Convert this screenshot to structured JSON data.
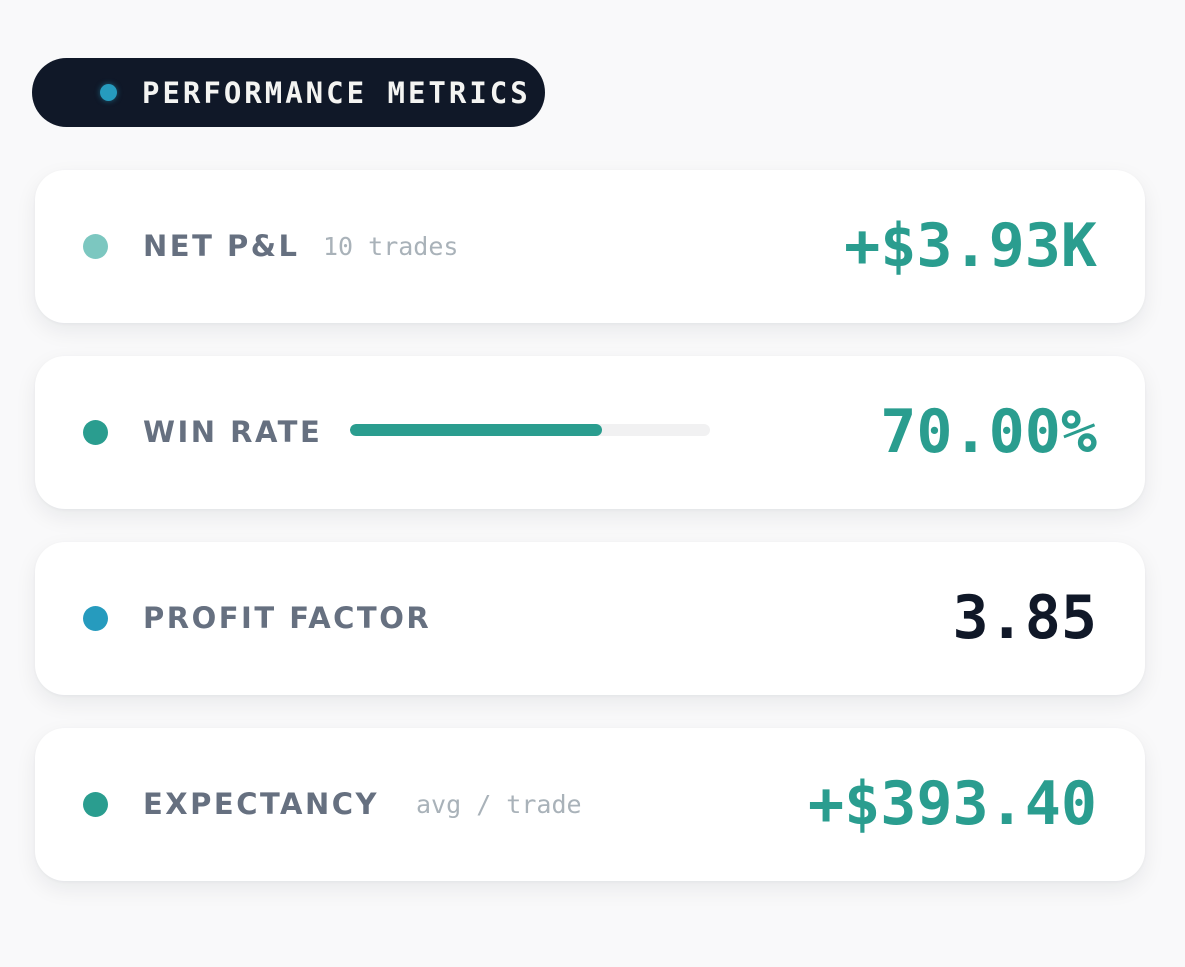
{
  "header": {
    "title": "PERFORMANCE METRICS",
    "dot_color": "#269bbe"
  },
  "metrics": [
    {
      "label": "NET P&L",
      "sub": "10 trades",
      "value": "+$3.93K",
      "dot_color": "#7cc7c0",
      "value_color": "#2a9d8f"
    },
    {
      "label": "WIN RATE",
      "value": "70.00%",
      "progress_fraction": 0.7,
      "dot_color": "#2a9d8f",
      "value_color": "#2a9d8f"
    },
    {
      "label": "PROFIT FACTOR",
      "value": "3.85",
      "dot_color": "#269bbe",
      "value_color": "#101828"
    },
    {
      "label": "EXPECTANCY",
      "sub": "avg / trade",
      "value": "+$393.40",
      "dot_color": "#2a9d8f",
      "value_color": "#2a9d8f"
    }
  ]
}
